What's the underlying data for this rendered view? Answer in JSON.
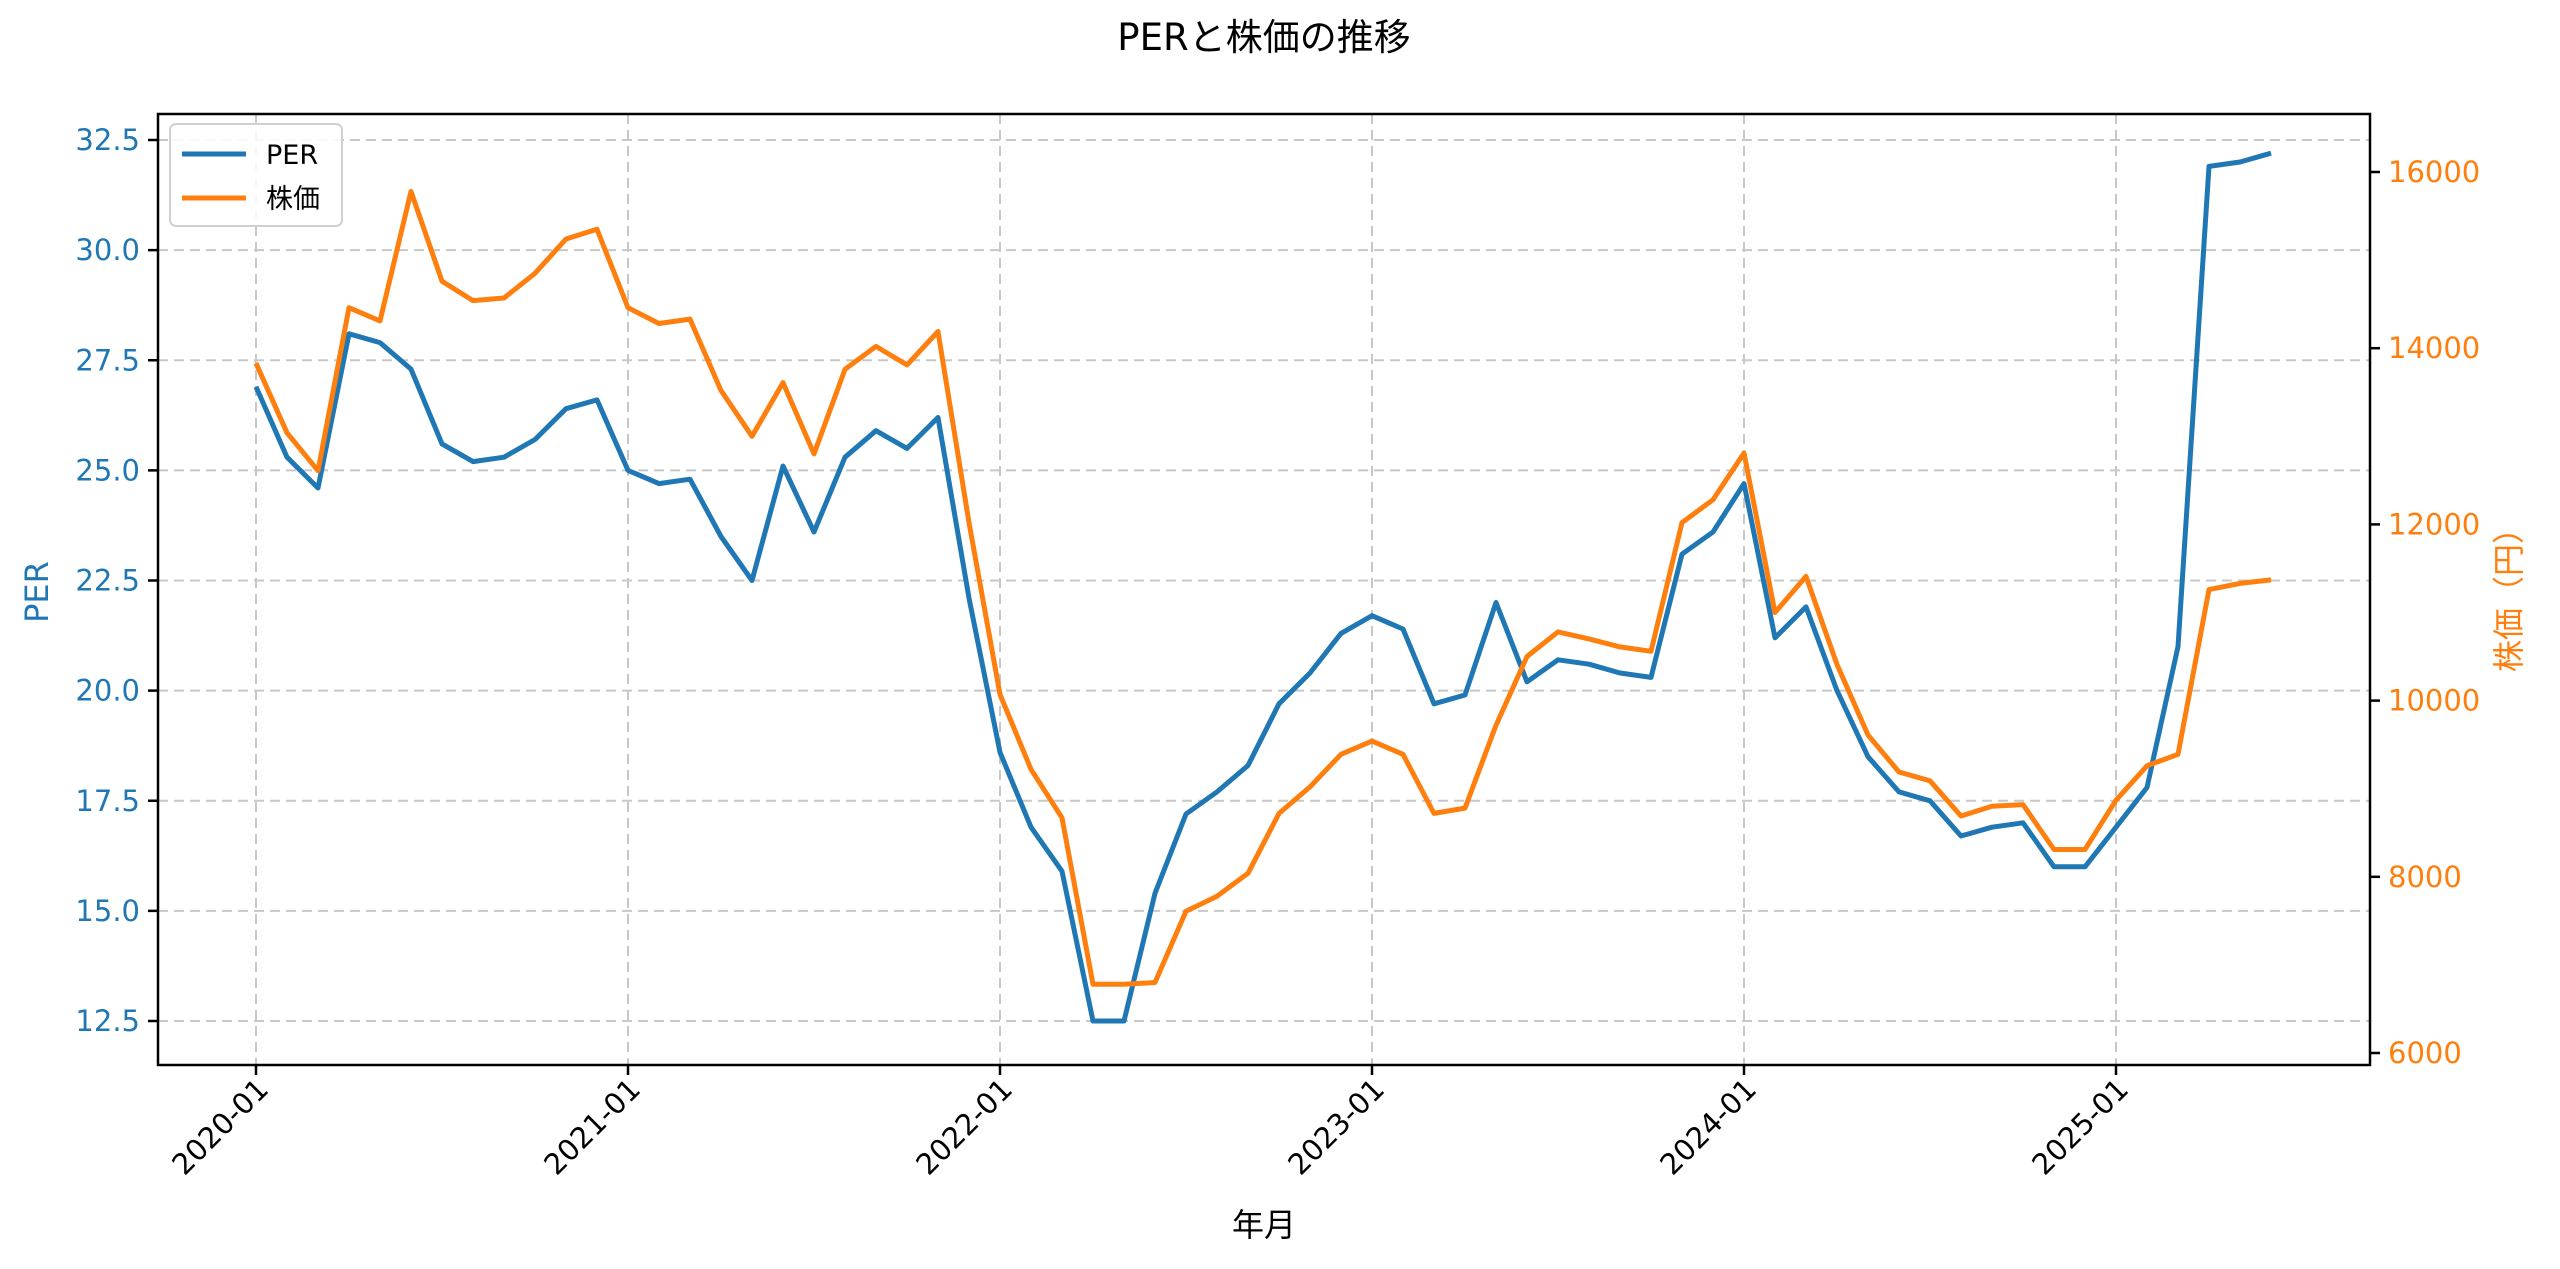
{
  "title": "PERと株価の推移",
  "axes": {
    "x_label": "年月",
    "left_label": "PER",
    "right_label": "株価（円）",
    "x_ticks": [
      "2020-01",
      "2021-01",
      "2022-01",
      "2023-01",
      "2024-01",
      "2025-01"
    ],
    "left_ticks": [
      "12.5",
      "15.0",
      "17.5",
      "20.0",
      "22.5",
      "25.0",
      "27.5",
      "30.0",
      "32.5"
    ],
    "right_ticks": [
      "6000",
      "8000",
      "10000",
      "12000",
      "14000",
      "16000"
    ]
  },
  "legend": {
    "items": [
      {
        "label": "PER",
        "color": "#1f77b4"
      },
      {
        "label": "株価",
        "color": "#ff7f0e"
      }
    ]
  },
  "colors": {
    "per": "#1f77b4",
    "price": "#ff7f0e",
    "grid": "#c8c8c8"
  },
  "chart_data": {
    "type": "line",
    "title": "PERと株価の推移",
    "xlabel": "年月",
    "ylabel": "PER",
    "y2label": "株価（円）",
    "ylim": [
      11.8,
      33.2
    ],
    "y2lim": [
      5850,
      16750
    ],
    "grid": true,
    "legend_position": "upper left",
    "x": [
      "2020-01",
      "2020-02",
      "2020-03",
      "2020-04",
      "2020-05",
      "2020-06",
      "2020-07",
      "2020-08",
      "2020-09",
      "2020-10",
      "2020-11",
      "2020-12",
      "2021-01",
      "2021-02",
      "2021-03",
      "2021-04",
      "2021-05",
      "2021-06",
      "2021-07",
      "2021-08",
      "2021-09",
      "2021-10",
      "2021-11",
      "2021-12",
      "2022-01",
      "2022-02",
      "2022-03",
      "2022-04",
      "2022-05",
      "2022-06",
      "2022-07",
      "2022-08",
      "2022-09",
      "2022-10",
      "2022-11",
      "2022-12",
      "2023-01",
      "2023-02",
      "2023-03",
      "2023-04",
      "2023-05",
      "2023-06",
      "2023-07",
      "2023-08",
      "2023-09",
      "2023-10",
      "2023-11",
      "2023-12",
      "2024-01",
      "2024-02",
      "2024-03",
      "2024-04",
      "2024-05",
      "2024-06",
      "2024-07",
      "2024-08",
      "2024-09",
      "2024-10",
      "2024-11",
      "2024-12",
      "2025-01",
      "2025-02",
      "2025-03",
      "2025-04",
      "2025-05",
      "2025-06"
    ],
    "series": [
      {
        "name": "PER",
        "axis": "left",
        "color": "#1f77b4",
        "values": [
          26.9,
          25.3,
          24.6,
          28.1,
          27.9,
          27.3,
          25.6,
          25.2,
          25.3,
          25.7,
          26.4,
          26.6,
          25.0,
          24.7,
          24.8,
          23.5,
          22.5,
          25.1,
          23.6,
          25.3,
          25.9,
          25.5,
          26.2,
          22.1,
          18.6,
          16.9,
          15.9,
          12.5,
          12.5,
          15.4,
          17.2,
          17.7,
          18.3,
          19.7,
          20.4,
          21.3,
          21.7,
          21.4,
          19.7,
          19.9,
          22.0,
          20.2,
          20.7,
          20.6,
          20.4,
          20.3,
          23.1,
          23.6,
          24.7,
          21.2,
          21.9,
          20.0,
          18.5,
          17.7,
          17.5,
          16.7,
          16.9,
          17.0,
          16.0,
          16.0,
          16.9,
          17.8,
          21.0,
          31.9,
          32.0,
          32.2
        ]
      },
      {
        "name": "株価",
        "axis": "right",
        "color": "#ff7f0e",
        "values": [
          13830,
          13040,
          12610,
          14460,
          14310,
          15780,
          14760,
          14540,
          14570,
          14850,
          15240,
          15350,
          14460,
          14280,
          14330,
          13520,
          13000,
          13610,
          12800,
          13760,
          14020,
          13810,
          14190,
          12020,
          10070,
          9220,
          8670,
          6780,
          6780,
          6800,
          7610,
          7780,
          8040,
          8720,
          9020,
          9390,
          9540,
          9390,
          8720,
          8780,
          9720,
          10500,
          10780,
          10700,
          10610,
          10560,
          12020,
          12280,
          12810,
          11000,
          11410,
          10410,
          9610,
          9190,
          9090,
          8690,
          8800,
          8820,
          8310,
          8310,
          8870,
          9260,
          9390,
          11260,
          11330,
          11370
        ]
      }
    ]
  }
}
